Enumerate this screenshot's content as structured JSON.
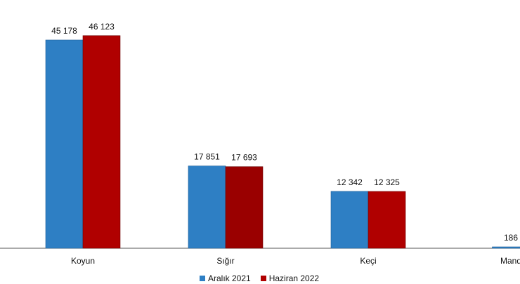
{
  "chart_data": {
    "type": "bar",
    "categories": [
      "Koyun",
      "Sığır",
      "Keçi",
      "Manda"
    ],
    "category_labels_shown": [
      "Koyun",
      "Sığır",
      "Keçi",
      "Mand"
    ],
    "series": [
      {
        "name": "Aralık 2021",
        "color": "#2e7fc4",
        "values": [
          45178,
          17851,
          12342,
          186
        ],
        "labels": [
          "45 178",
          "17 851",
          "12 342",
          "186"
        ]
      },
      {
        "name": "Haziran 2022",
        "color": "#b00000",
        "values": [
          46123,
          17693,
          12325,
          null
        ],
        "labels": [
          "46 123",
          "17 693",
          "12 325",
          ""
        ]
      }
    ],
    "title": "",
    "xlabel": "",
    "ylabel": "",
    "ylim": [
      0,
      50000
    ],
    "grid": false,
    "legend_position": "bottom"
  }
}
